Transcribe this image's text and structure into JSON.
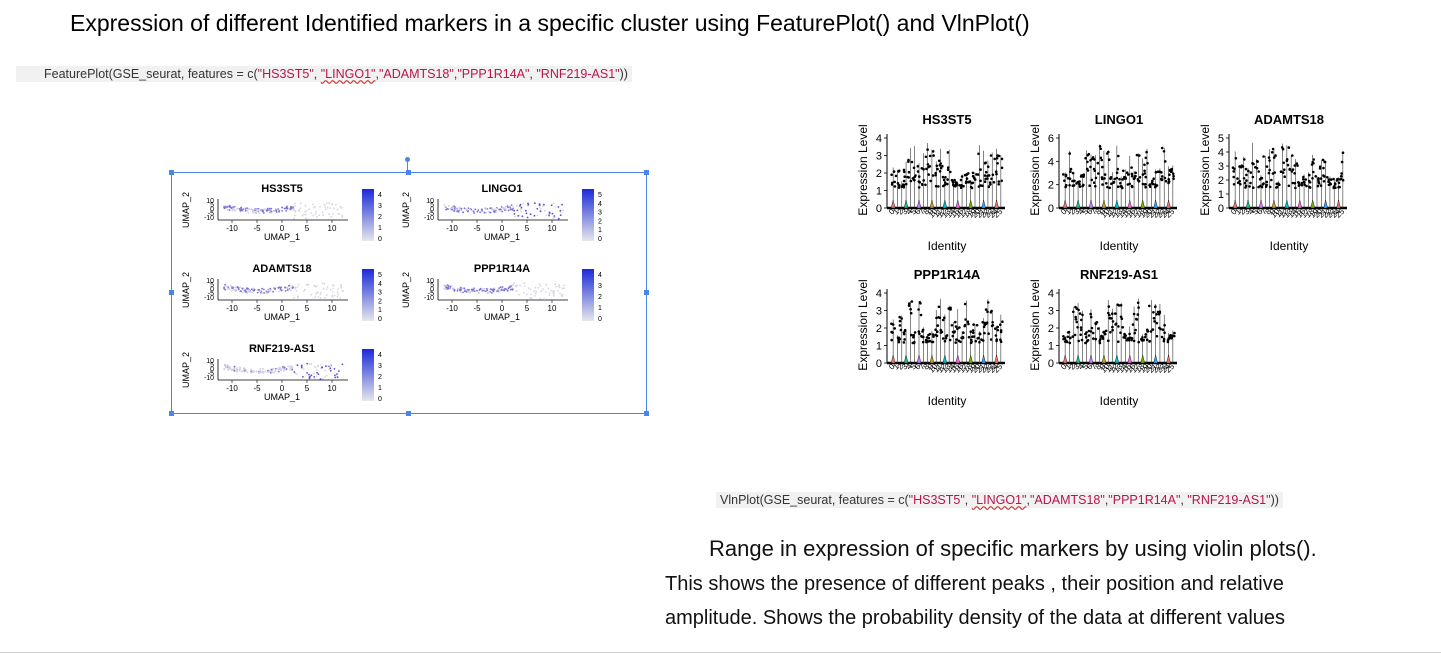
{
  "heading": "Expression of different Identified markers in a specific cluster  using FeaturePlot() and VlnPlot()",
  "feature_code": {
    "prefix": "FeaturePlot(GSE_seurat, features = c(",
    "items": [
      "\"HS3ST5\"",
      ", ",
      "\"LINGO1\"",
      ",",
      "\"ADAMTS18\"",
      ",",
      "\"PPP1R14A\"",
      ", ",
      "\"RNF219-AS1\""
    ],
    "suffix": "))"
  },
  "vln_code": {
    "prefix": "VlnPlot(GSE_seurat, features = c(",
    "items": [
      "\"HS3ST5\"",
      ", ",
      "\"LINGO1\"",
      ",",
      "\"ADAMTS18\"",
      ",",
      "\"PPP1R14A\"",
      ", ",
      "\"RNF219-AS1\""
    ],
    "suffix": "))"
  },
  "desc_title": "Range in expression of specific markers by using violin plots().",
  "desc_line1": "This shows the presence of different peaks , their position and relative",
  "desc_line2": "amplitude.   Shows the probability density of the data at different values",
  "colors": {
    "accent": "#4a86e8",
    "umap_points": "#6a5acd",
    "colorbar_top": "#1a2bd6",
    "string": "#b8154a"
  },
  "feature_plots": {
    "xlabel": "UMAP_1",
    "ylabel": "UMAP_2",
    "xticks": [
      "-10",
      "-5",
      "0",
      "5",
      "10"
    ],
    "yticks": [
      "10",
      "5",
      "0",
      "-5",
      "-10"
    ],
    "panels": [
      {
        "title": "HS3ST5",
        "legend": [
          "4",
          "3",
          "2",
          "1",
          "0"
        ]
      },
      {
        "title": "LINGO1",
        "legend": [
          "5",
          "4",
          "3",
          "2",
          "1",
          "0"
        ]
      },
      {
        "title": "ADAMTS18",
        "legend": [
          "5",
          "4",
          "3",
          "2",
          "1",
          "0"
        ]
      },
      {
        "title": "PPP1R14A",
        "legend": [
          "4",
          "3",
          "2",
          "1",
          "0"
        ]
      },
      {
        "title": "RNF219-AS1",
        "legend": [
          "4",
          "3",
          "2",
          "1",
          "0"
        ]
      }
    ]
  },
  "violin_plots": {
    "xlabel": "Identity",
    "ylabel": "Expression Level",
    "panels": [
      {
        "title": "HS3ST5",
        "yticks": [
          "4",
          "3",
          "2",
          "1",
          "0"
        ]
      },
      {
        "title": "LINGO1",
        "yticks": [
          "6",
          "4",
          "2",
          "0"
        ]
      },
      {
        "title": "ADAMTS18",
        "yticks": [
          "5",
          "4",
          "3",
          "2",
          "1",
          "0"
        ]
      },
      {
        "title": "PPP1R14A",
        "yticks": [
          "4",
          "3",
          "2",
          "1",
          "0"
        ]
      },
      {
        "title": "RNF219-AS1",
        "yticks": [
          "4",
          "3",
          "2",
          "1",
          "0"
        ]
      }
    ]
  }
}
